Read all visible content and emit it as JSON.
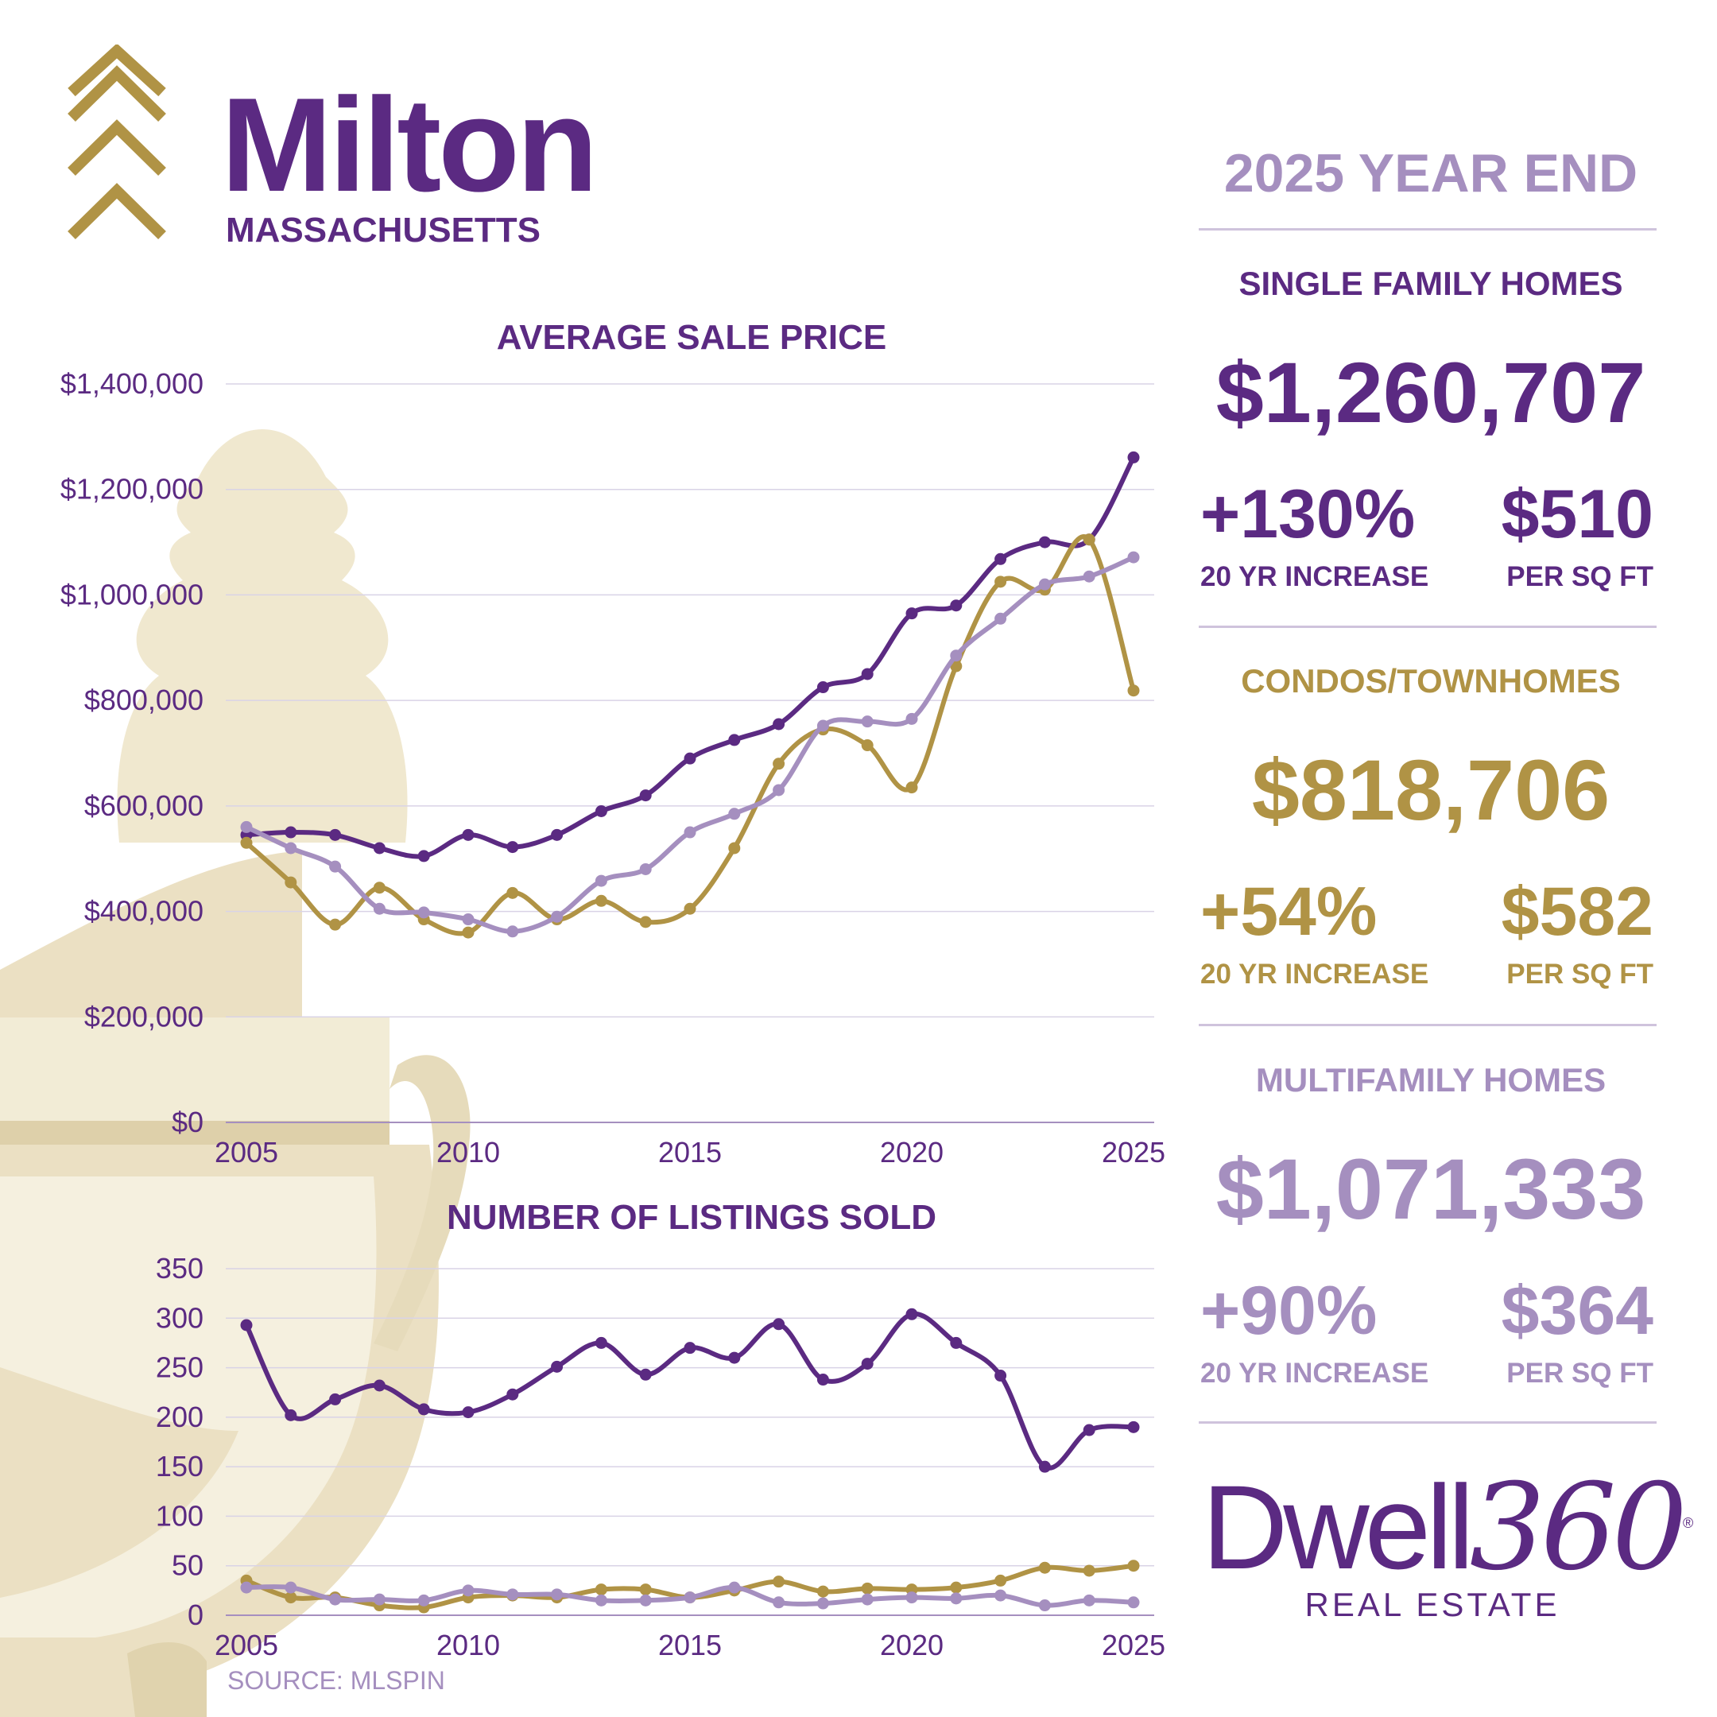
{
  "header": {
    "city": "Milton",
    "state": "MASSACHUSETTS",
    "period": "2025 YEAR END",
    "source": "SOURCE: MLSPIN"
  },
  "colors": {
    "single_family": "#5b2a82",
    "condo": "#b09345",
    "multifamily": "#a58fbf",
    "gridline": "#d9d3e6"
  },
  "icons": [
    "triple-chevron-up-icon",
    "door-knocker-illustration"
  ],
  "sections": {
    "single_family": {
      "title": "SINGLE FAMILY HOMES",
      "price": "$1,260,707",
      "increase": "+130%",
      "increase_label": "20 YR INCREASE",
      "per_sqft": "$510",
      "per_sqft_label": "PER SQ FT"
    },
    "condo": {
      "title": "CONDOS/TOWNHOMES",
      "price": "$818,706",
      "increase": "+54%",
      "increase_label": "20 YR INCREASE",
      "per_sqft": "$582",
      "per_sqft_label": "PER SQ FT"
    },
    "multifamily": {
      "title": "MULTIFAMILY HOMES",
      "price": "$1,071,333",
      "increase": "+90%",
      "increase_label": "20 YR INCREASE",
      "per_sqft": "$364",
      "per_sqft_label": "PER SQ FT"
    }
  },
  "logo": {
    "main": "Dwell",
    "number": "360",
    "mark": "®",
    "sub": "REAL ESTATE"
  },
  "chart_data": [
    {
      "type": "line",
      "title": "AVERAGE SALE PRICE",
      "x": [
        2005,
        2006,
        2007,
        2008,
        2009,
        2010,
        2011,
        2012,
        2013,
        2014,
        2015,
        2016,
        2017,
        2018,
        2019,
        2020,
        2021,
        2022,
        2023,
        2024,
        2025
      ],
      "xticks": [
        "2005",
        "2010",
        "2015",
        "2020",
        "2025"
      ],
      "yticks": [
        "$0",
        "$200,000",
        "$400,000",
        "$600,000",
        "$800,000",
        "$1,000,000",
        "$1,200,000",
        "$1,400,000"
      ],
      "ylim": [
        0,
        1400000
      ],
      "grid": true,
      "series": [
        {
          "key": "single_family",
          "color": "#5b2a82",
          "values": [
            545000,
            550000,
            545000,
            520000,
            505000,
            545000,
            522000,
            545000,
            590000,
            620000,
            690000,
            725000,
            755000,
            825000,
            850000,
            965000,
            980000,
            1068000,
            1100000,
            1105000,
            1260707
          ]
        },
        {
          "key": "condo",
          "color": "#b09345",
          "values": [
            530000,
            455000,
            375000,
            445000,
            385000,
            360000,
            435000,
            385000,
            420000,
            380000,
            405000,
            520000,
            680000,
            745000,
            715000,
            635000,
            865000,
            1025000,
            1010000,
            1105000,
            818706
          ]
        },
        {
          "key": "multifamily",
          "color": "#a58fbf",
          "values": [
            560000,
            520000,
            485000,
            405000,
            398000,
            385000,
            362000,
            390000,
            458000,
            480000,
            550000,
            585000,
            630000,
            752000,
            760000,
            765000,
            885000,
            955000,
            1020000,
            1035000,
            1071333
          ]
        }
      ]
    },
    {
      "type": "line",
      "title": "NUMBER OF LISTINGS SOLD",
      "x": [
        2005,
        2006,
        2007,
        2008,
        2009,
        2010,
        2011,
        2012,
        2013,
        2014,
        2015,
        2016,
        2017,
        2018,
        2019,
        2020,
        2021,
        2022,
        2023,
        2024,
        2025
      ],
      "xticks": [
        "2005",
        "2010",
        "2015",
        "2020",
        "2025"
      ],
      "yticks": [
        "0",
        "50",
        "100",
        "150",
        "200",
        "250",
        "300",
        "350"
      ],
      "ylim": [
        0,
        350
      ],
      "grid": true,
      "series": [
        {
          "key": "single_family",
          "color": "#5b2a82",
          "values": [
            293,
            202,
            218,
            232,
            208,
            205,
            223,
            251,
            275,
            243,
            270,
            260,
            294,
            238,
            254,
            304,
            275,
            242,
            150,
            187,
            190
          ]
        },
        {
          "key": "condo",
          "color": "#b09345",
          "values": [
            35,
            18,
            18,
            10,
            8,
            18,
            20,
            18,
            26,
            26,
            18,
            25,
            34,
            24,
            27,
            26,
            28,
            35,
            48,
            45,
            50
          ]
        },
        {
          "key": "multifamily",
          "color": "#a58fbf",
          "values": [
            28,
            28,
            16,
            16,
            15,
            25,
            21,
            21,
            15,
            15,
            18,
            28,
            13,
            12,
            16,
            18,
            17,
            20,
            10,
            15,
            13
          ]
        }
      ]
    }
  ]
}
